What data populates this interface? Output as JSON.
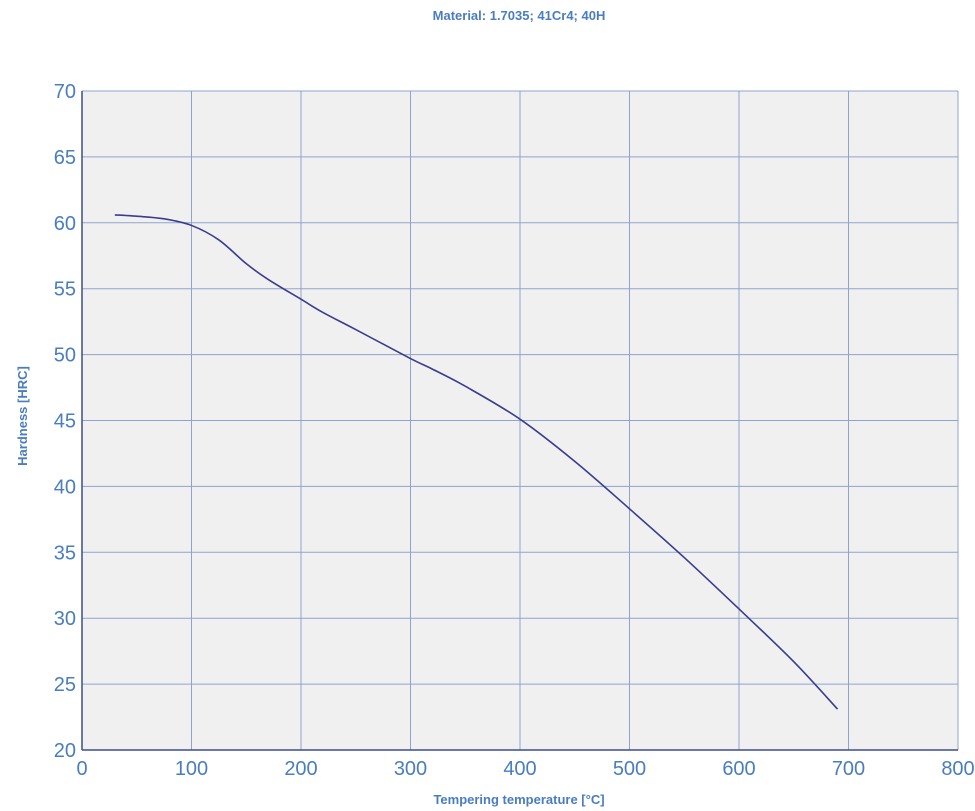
{
  "chart_data": {
    "type": "line",
    "title": "Material: 1.7035; 41Cr4; 40H",
    "xlabel": "Tempering temperature [°C]",
    "ylabel": "Hardness [HRC]",
    "xlim": [
      0,
      800
    ],
    "ylim": [
      20,
      70
    ],
    "xticks": [
      "0",
      "100",
      "200",
      "300",
      "400",
      "500",
      "600",
      "700",
      "800"
    ],
    "yticks": [
      "20",
      "25",
      "30",
      "35",
      "40",
      "45",
      "50",
      "55",
      "60",
      "65",
      "70"
    ],
    "grid": true,
    "colors": {
      "line": "#3b3b8f",
      "text": "#4a7dc0",
      "grid": "#8fa3cf",
      "plot_bg": "#f0f0f0",
      "axis": "#3d4f8a"
    },
    "series": [
      {
        "x": [
          30,
          50,
          75,
          100,
          125,
          150,
          170,
          200,
          220,
          250,
          300,
          320,
          350,
          400,
          450,
          500,
          550,
          600,
          650,
          690
        ],
        "y": [
          60.6,
          60.5,
          60.3,
          59.8,
          58.7,
          56.9,
          55.7,
          54.2,
          53.2,
          51.9,
          49.7,
          48.9,
          47.6,
          45.1,
          41.9,
          38.3,
          34.6,
          30.7,
          26.7,
          23.1
        ]
      }
    ]
  }
}
